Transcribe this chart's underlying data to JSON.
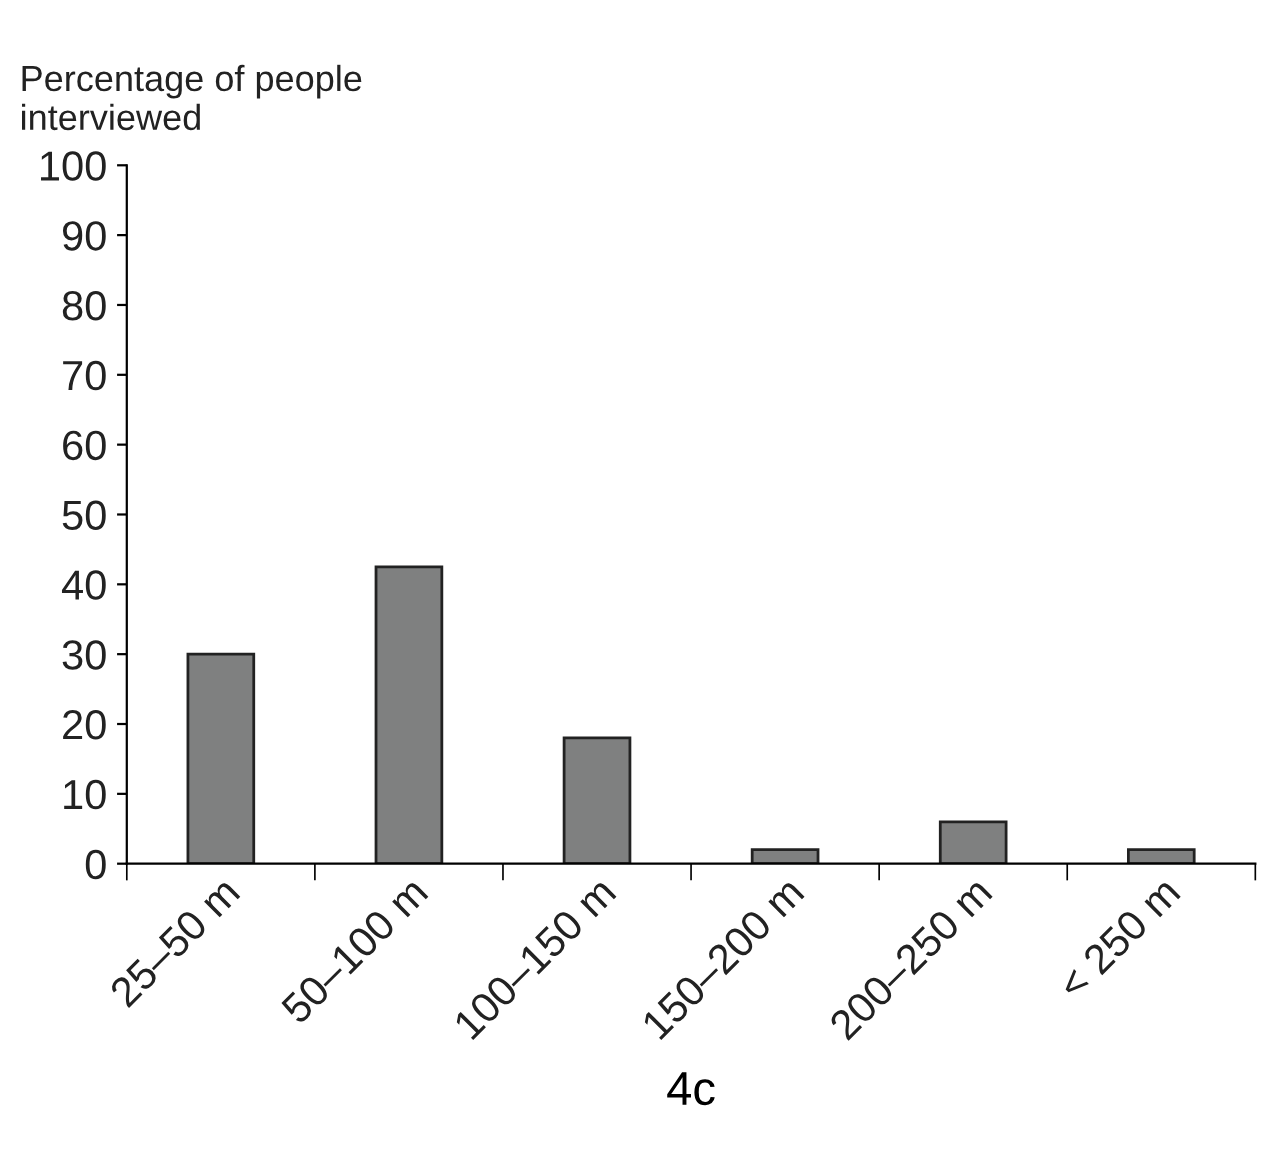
{
  "chart_data": {
    "type": "bar",
    "xlabel": "4c",
    "ylabel": "Percentage of people\ninterviewed",
    "categories": [
      "25–50 m",
      "50–100 m",
      "100–150 m",
      "150–200 m",
      "200–250 m",
      "< 250 m"
    ],
    "values": [
      30,
      42.5,
      18,
      2,
      6,
      2
    ],
    "color": "#7f8080",
    "ylim": [
      0,
      100
    ],
    "yticks": [
      0,
      10,
      20,
      30,
      40,
      50,
      60,
      70,
      80,
      90,
      100
    ],
    "grid": false,
    "legend": false
  }
}
